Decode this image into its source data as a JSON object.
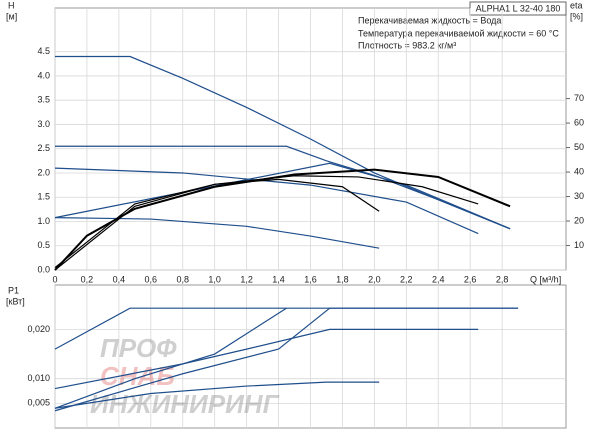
{
  "chart_data": [
    {
      "type": "line",
      "title": "ALPHA1 L 32-40  180",
      "annotations": [
        "Перекачиваемая жидкость = Вода",
        "Температура перекачиваемой жидкости = 60 °C",
        "Плотность = 983.2 кг/м³"
      ],
      "xlabel": "Q [м³/h]",
      "ylabel": "H",
      "yunit": "[м]",
      "y2label": "eta",
      "y2unit": "[%]",
      "xlim": [
        0,
        3.2
      ],
      "xticks": [
        0,
        {
          "value": 0.2,
          "label": "0,2"
        },
        {
          "value": 0.4,
          "label": "0,4"
        },
        {
          "value": 0.6,
          "label": "0,6"
        },
        {
          "value": 0.8,
          "label": "0,8"
        },
        {
          "value": 1.0,
          "label": "1,0"
        },
        {
          "value": 1.2,
          "label": "1,2"
        },
        {
          "value": 1.4,
          "label": "1,4"
        },
        {
          "value": 1.6,
          "label": "1,6"
        },
        {
          "value": 1.8,
          "label": "1,8"
        },
        {
          "value": 2.0,
          "label": "2,0"
        },
        {
          "value": 2.2,
          "label": "2,2"
        },
        {
          "value": 2.4,
          "label": "2,4"
        },
        {
          "value": 2.6,
          "label": "2,6"
        },
        {
          "value": 2.8,
          "label": "2,8"
        }
      ],
      "ylim": [
        0,
        5.4
      ],
      "yticks": [
        {
          "value": 0,
          "label": "0.0"
        },
        0.5,
        {
          "value": 1,
          "label": "1.0"
        },
        1.5,
        {
          "value": 2,
          "label": "2.0"
        },
        2.5,
        {
          "value": 3,
          "label": "3.0"
        },
        3.5,
        {
          "value": 4,
          "label": "4.0"
        },
        4.5
      ],
      "y2lim": [
        0,
        107
      ],
      "y2ticks": [
        10,
        20,
        30,
        40,
        50,
        60,
        70
      ],
      "grid": true,
      "series": [
        {
          "color": "#1f4e8c",
          "x": [
            0,
            0.47,
            0.8,
            1.2,
            1.6,
            2.0,
            2.4,
            2.85
          ],
          "values": [
            4.4,
            4.4,
            3.95,
            3.35,
            2.7,
            2.0,
            1.45,
            0.85
          ]
        },
        {
          "color": "#1f4e8c",
          "x": [
            0,
            1.45,
            1.7,
            2.0,
            2.4,
            2.85
          ],
          "values": [
            2.55,
            2.55,
            2.25,
            1.95,
            1.45,
            0.85
          ]
        },
        {
          "color": "#1f4e8c",
          "x": [
            0,
            1.72,
            2.2,
            2.85
          ],
          "values": [
            1.08,
            2.2,
            1.75,
            0.85
          ]
        },
        {
          "color": "#1f4e8c",
          "x": [
            0,
            0.8,
            1.6,
            2.2,
            2.65
          ],
          "values": [
            2.1,
            2.0,
            1.75,
            1.4,
            0.75
          ]
        },
        {
          "color": "#1f4e8c",
          "x": [
            0,
            0.6,
            1.2,
            1.6,
            2.03
          ],
          "values": [
            1.08,
            1.05,
            0.9,
            0.7,
            0.45
          ]
        },
        {
          "color": "#000000",
          "axis": "y2",
          "x": [
            0,
            0.2,
            0.5,
            1.0,
            1.5,
            2.0,
            2.4,
            2.85
          ],
          "values": [
            0,
            14,
            25,
            34,
            39,
            41,
            38,
            26
          ]
        },
        {
          "color": "#000000",
          "axis": "y2",
          "x": [
            0,
            0.5,
            1.0,
            1.5,
            1.9,
            2.3,
            2.65
          ],
          "values": [
            0,
            26,
            35,
            38.5,
            38,
            34,
            27
          ]
        },
        {
          "color": "#000000",
          "axis": "y2",
          "x": [
            0,
            0.5,
            1.0,
            1.4,
            1.8,
            2.03
          ],
          "values": [
            1,
            27,
            35,
            37,
            34,
            24
          ]
        }
      ]
    },
    {
      "type": "line",
      "ylabel": "P1",
      "yunit": "[кВт]",
      "xlim": [
        0,
        3.2
      ],
      "xticks": [
        0,
        0.2,
        0.4,
        0.6,
        0.8,
        1.0,
        1.2,
        1.4,
        1.6,
        1.8,
        2.0,
        2.2,
        2.4,
        2.6,
        2.8
      ],
      "ylim": [
        0,
        0.029
      ],
      "yticks": [
        {
          "value": 0.005,
          "label": "0,005"
        },
        {
          "value": 0.01,
          "label": "0,010"
        },
        {
          "value": 0.02,
          "label": "0,020"
        }
      ],
      "grid": true,
      "watermark": [
        "ПРОФ",
        "СНАБ",
        "ИНЖИНИРИНГ"
      ],
      "series": [
        {
          "color": "#1f4e8c",
          "x": [
            0,
            0.47,
            2.9
          ],
          "values": [
            0.016,
            0.0243,
            0.0243
          ]
        },
        {
          "color": "#1f4e8c",
          "x": [
            0,
            0.5,
            1.0,
            1.45
          ],
          "values": [
            0.004,
            0.01,
            0.015,
            0.0243
          ]
        },
        {
          "color": "#1f4e8c",
          "x": [
            0,
            0.8,
            1.4,
            1.72,
            2.9
          ],
          "values": [
            0.0035,
            0.011,
            0.016,
            0.0243,
            0.0243
          ]
        },
        {
          "color": "#1f4e8c",
          "x": [
            0,
            0.8,
            1.2,
            1.72,
            2.65
          ],
          "values": [
            0.008,
            0.013,
            0.016,
            0.02,
            0.02
          ]
        },
        {
          "color": "#1f4e8c",
          "x": [
            0,
            0.6,
            1.2,
            1.7,
            2.03
          ],
          "values": [
            0.004,
            0.007,
            0.0085,
            0.0093,
            0.0093
          ]
        }
      ]
    }
  ]
}
